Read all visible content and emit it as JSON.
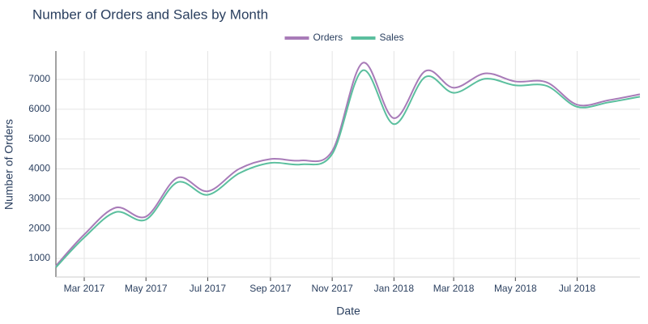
{
  "chart_data": {
    "type": "line",
    "title": "Number of Orders and Sales by Month",
    "x_label": "Date",
    "y_label": "Number of Orders",
    "x": [
      "2017-02",
      "2017-03",
      "2017-04",
      "2017-05",
      "2017-06",
      "2017-07",
      "2017-08",
      "2017-09",
      "2017-10",
      "2017-11",
      "2017-12",
      "2018-01",
      "2018-02",
      "2018-03",
      "2018-04",
      "2018-05",
      "2018-06",
      "2018-07",
      "2018-08",
      "2018-09"
    ],
    "series": [
      {
        "name": "Orders",
        "color": "#a87bb8",
        "values": [
          750,
          1800,
          2700,
          2400,
          3700,
          3250,
          4000,
          4330,
          4280,
          4600,
          7550,
          5700,
          7280,
          6720,
          7200,
          6930,
          6900,
          6150,
          6300,
          6500
        ]
      },
      {
        "name": "Sales",
        "color": "#5bbf9e",
        "values": [
          700,
          1700,
          2550,
          2300,
          3550,
          3130,
          3850,
          4200,
          4150,
          4500,
          7300,
          5500,
          7080,
          6550,
          7020,
          6800,
          6780,
          6080,
          6230,
          6420
        ]
      }
    ],
    "xlim": [
      "2017-02",
      "2018-09"
    ],
    "xticks": [
      {
        "value": "2017-03",
        "label": "Mar 2017"
      },
      {
        "value": "2017-05",
        "label": "May 2017"
      },
      {
        "value": "2017-07",
        "label": "Jul 2017"
      },
      {
        "value": "2017-09",
        "label": "Sep 2017"
      },
      {
        "value": "2017-11",
        "label": "Nov 2017"
      },
      {
        "value": "2018-01",
        "label": "Jan 2018"
      },
      {
        "value": "2018-03",
        "label": "Mar 2018"
      },
      {
        "value": "2018-05",
        "label": "May 2018"
      },
      {
        "value": "2018-07",
        "label": "Jul 2018"
      }
    ],
    "ylim": [
      375,
      7950
    ],
    "yticks": [
      1000,
      2000,
      3000,
      4000,
      5000,
      6000,
      7000
    ],
    "grid": true,
    "legend": "top"
  }
}
